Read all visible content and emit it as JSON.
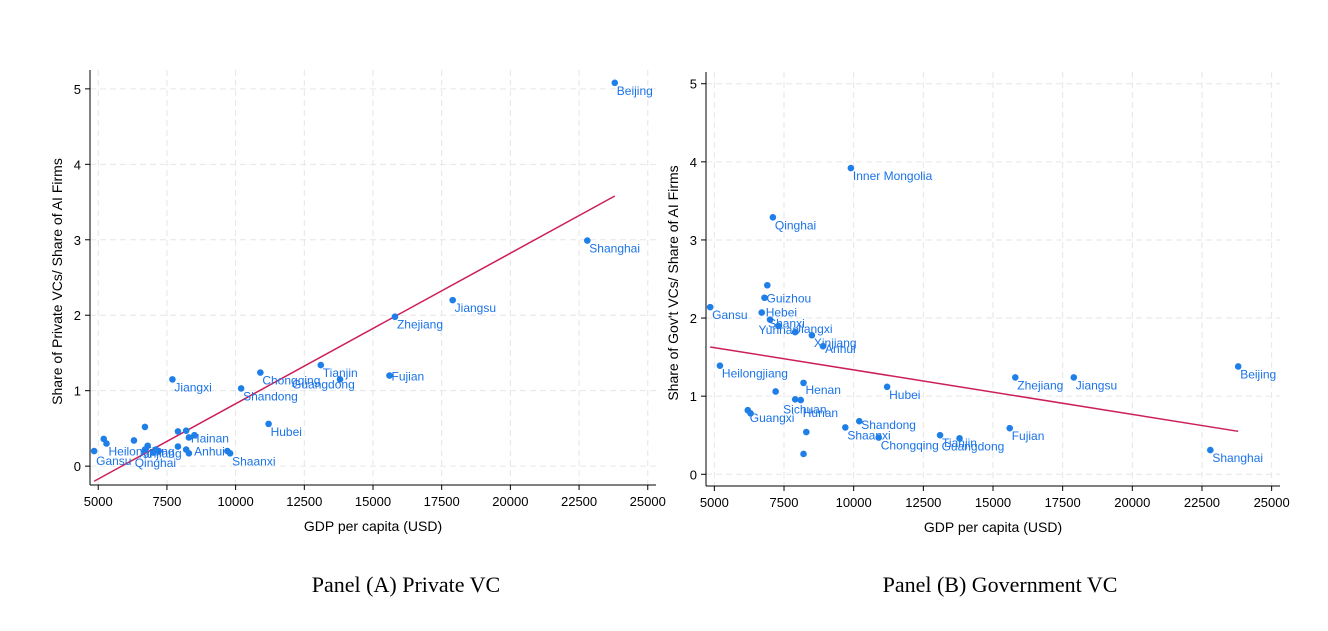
{
  "colors": {
    "point": "#1f7fe8",
    "label": "#1a73e8",
    "fit": "#cc1f5a",
    "grid": "#e6e6e6"
  },
  "panels": [
    {
      "title": "Panel (A) Private VC"
    },
    {
      "title": "Panel (B) Government VC"
    }
  ],
  "chart_data": [
    {
      "type": "scatter",
      "xlabel": "GDP per capita (USD)",
      "ylabel": "Share of Private VCs/ Share of AI Firms",
      "xlim": [
        4700,
        25300
      ],
      "ylim": [
        -0.25,
        5.25
      ],
      "xticks": [
        5000,
        7500,
        10000,
        12500,
        15000,
        17500,
        20000,
        22500,
        25000
      ],
      "yticks": [
        0,
        1,
        2,
        3,
        4,
        5
      ],
      "grid": true,
      "fit_line": {
        "x": [
          4850,
          23800
        ],
        "y": [
          -0.2,
          3.58
        ]
      },
      "points": [
        {
          "x": 23800,
          "y": 5.08,
          "label": "Beijing"
        },
        {
          "x": 22800,
          "y": 2.99,
          "label": "Shanghai"
        },
        {
          "x": 17900,
          "y": 2.2,
          "label": "Jiangsu"
        },
        {
          "x": 15800,
          "y": 1.98,
          "label": "Zhejiang"
        },
        {
          "x": 15600,
          "y": 1.2,
          "label": "Fujian"
        },
        {
          "x": 13800,
          "y": 1.15,
          "label": "Guangdong"
        },
        {
          "x": 13100,
          "y": 1.34,
          "label": "Tianjin"
        },
        {
          "x": 10900,
          "y": 1.24,
          "label": "Chongqing"
        },
        {
          "x": 10200,
          "y": 1.03,
          "label": "Shandong"
        },
        {
          "x": 11200,
          "y": 0.56,
          "label": "Hubei"
        },
        {
          "x": 7700,
          "y": 1.15,
          "label": "Jiangxi"
        },
        {
          "x": 9800,
          "y": 0.17,
          "label": "Shaanxi"
        },
        {
          "x": 8300,
          "y": 0.38,
          "label": "Hainan"
        },
        {
          "x": 8200,
          "y": 0.22,
          "label": "Anhui"
        },
        {
          "x": 7200,
          "y": 0.2,
          "label": "Qinghai"
        },
        {
          "x": 5300,
          "y": 0.3,
          "label": "Heilongjiang"
        },
        {
          "x": 4850,
          "y": 0.2,
          "label": "Gansu"
        },
        {
          "x": 6700,
          "y": 0.22,
          "label": "Xinjiang"
        },
        {
          "x": 5200,
          "y": 0.36,
          "label": ""
        },
        {
          "x": 6300,
          "y": 0.34,
          "label": ""
        },
        {
          "x": 6700,
          "y": 0.52,
          "label": ""
        },
        {
          "x": 6800,
          "y": 0.27,
          "label": ""
        },
        {
          "x": 7000,
          "y": 0.18,
          "label": ""
        },
        {
          "x": 7100,
          "y": 0.22,
          "label": ""
        },
        {
          "x": 7900,
          "y": 0.46,
          "label": ""
        },
        {
          "x": 7900,
          "y": 0.26,
          "label": ""
        },
        {
          "x": 8200,
          "y": 0.47,
          "label": ""
        },
        {
          "x": 8500,
          "y": 0.41,
          "label": ""
        },
        {
          "x": 8300,
          "y": 0.17,
          "label": ""
        },
        {
          "x": 9700,
          "y": 0.2,
          "label": ""
        }
      ]
    },
    {
      "type": "scatter",
      "xlabel": "GDP per capita (USD)",
      "ylabel": "Share of Gov't VCs/ Share of AI Firms",
      "xlim": [
        4700,
        25300
      ],
      "ylim": [
        -0.15,
        5.15
      ],
      "xticks": [
        5000,
        7500,
        10000,
        12500,
        15000,
        17500,
        20000,
        22500,
        25000
      ],
      "yticks": [
        0,
        1,
        2,
        3,
        4,
        5
      ],
      "grid": true,
      "fit_line": {
        "x": [
          4850,
          23800
        ],
        "y": [
          1.63,
          0.55
        ]
      },
      "points": [
        {
          "x": 9900,
          "y": 3.92,
          "label": "Inner Mongolia"
        },
        {
          "x": 7100,
          "y": 3.29,
          "label": "Qinghai"
        },
        {
          "x": 6900,
          "y": 2.42,
          "label": ""
        },
        {
          "x": 6800,
          "y": 2.26,
          "label": "Guizhou"
        },
        {
          "x": 6700,
          "y": 2.07,
          "label": "Hebei"
        },
        {
          "x": 4850,
          "y": 2.14,
          "label": "Gansu"
        },
        {
          "x": 7000,
          "y": 1.98,
          "label": "Shanxi"
        },
        {
          "x": 7300,
          "y": 1.9,
          "label": "Yunnan"
        },
        {
          "x": 7900,
          "y": 1.82,
          "label": "Jiangxi"
        },
        {
          "x": 8500,
          "y": 1.78,
          "label": "Xinjiang"
        },
        {
          "x": 8900,
          "y": 1.64,
          "label": "Anhui"
        },
        {
          "x": 5200,
          "y": 1.39,
          "label": "Heilongjiang"
        },
        {
          "x": 23800,
          "y": 1.38,
          "label": "Beijing"
        },
        {
          "x": 15800,
          "y": 1.24,
          "label": "Zhejiang"
        },
        {
          "x": 17900,
          "y": 1.24,
          "label": "Jiangsu"
        },
        {
          "x": 11200,
          "y": 1.12,
          "label": "Hubei"
        },
        {
          "x": 8200,
          "y": 1.17,
          "label": "Henan"
        },
        {
          "x": 7200,
          "y": 1.06,
          "label": ""
        },
        {
          "x": 7900,
          "y": 0.96,
          "label": "Sichuan"
        },
        {
          "x": 8100,
          "y": 0.95,
          "label": "Hunan"
        },
        {
          "x": 6200,
          "y": 0.82,
          "label": "Guangxi"
        },
        {
          "x": 6300,
          "y": 0.78,
          "label": ""
        },
        {
          "x": 10200,
          "y": 0.68,
          "label": "Shandong"
        },
        {
          "x": 9700,
          "y": 0.6,
          "label": "Shaanxi"
        },
        {
          "x": 8300,
          "y": 0.54,
          "label": ""
        },
        {
          "x": 13100,
          "y": 0.5,
          "label": "Tianjin"
        },
        {
          "x": 13800,
          "y": 0.46,
          "label": "Guangdong"
        },
        {
          "x": 10900,
          "y": 0.47,
          "label": "Chongqing"
        },
        {
          "x": 15600,
          "y": 0.59,
          "label": "Fujian"
        },
        {
          "x": 22800,
          "y": 0.31,
          "label": "Shanghai"
        },
        {
          "x": 8200,
          "y": 0.26,
          "label": ""
        }
      ]
    }
  ]
}
